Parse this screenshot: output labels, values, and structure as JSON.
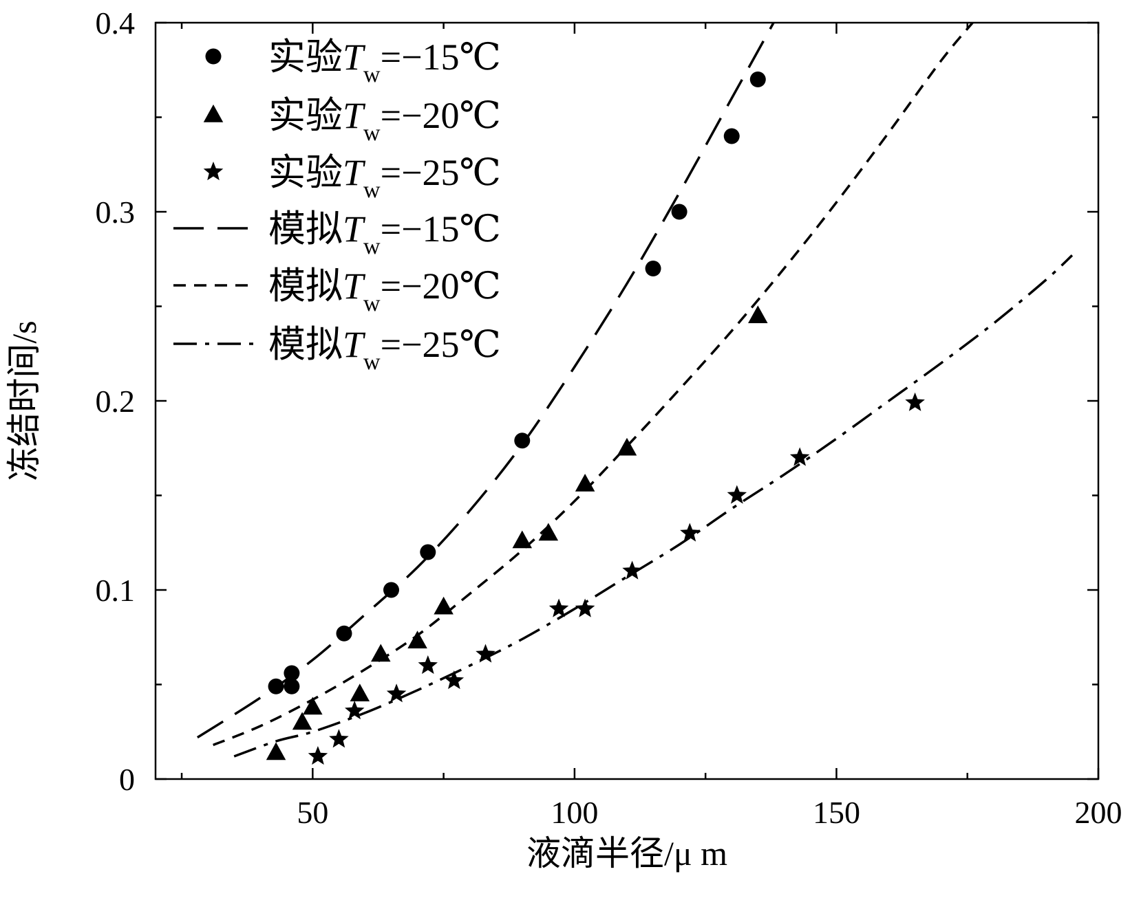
{
  "chart_data": {
    "type": "scatter",
    "title": "",
    "xlabel": "液滴半径/μ m",
    "ylabel": "冻结时间/s",
    "xlim": [
      20,
      200
    ],
    "ylim": [
      0,
      0.4
    ],
    "xticks": [
      50,
      100,
      150,
      200
    ],
    "xtick_labels": [
      "50",
      "100",
      "150",
      "200"
    ],
    "yticks": [
      0,
      0.1,
      0.2,
      0.3,
      0.4
    ],
    "ytick_labels": [
      "0",
      "0.1",
      "0.2",
      "0.3",
      "0.4"
    ],
    "x_minor_ticks": [
      25,
      75,
      125,
      175
    ],
    "y_minor_ticks": [
      0.05,
      0.15,
      0.25,
      0.35
    ],
    "grid": false,
    "legend_position": "top-left",
    "legend_prefix_exp": "实验",
    "legend_prefix_sim": "模拟",
    "legend_var": "T",
    "legend_sub": "w",
    "experiments": [
      {
        "name": "实验Tw=−15℃",
        "temp": "=−15℃",
        "marker": "circle",
        "x": [
          43,
          46,
          46,
          56,
          65,
          72,
          90,
          115,
          120,
          130,
          135
        ],
        "y": [
          0.049,
          0.049,
          0.056,
          0.077,
          0.1,
          0.12,
          0.179,
          0.27,
          0.3,
          0.34,
          0.37
        ]
      },
      {
        "name": "实验Tw=−20℃",
        "temp": "=−20℃",
        "marker": "triangle",
        "x": [
          43,
          48,
          50,
          59,
          63,
          70,
          75,
          90,
          95,
          102,
          110,
          135
        ],
        "y": [
          0.014,
          0.03,
          0.038,
          0.045,
          0.066,
          0.073,
          0.091,
          0.126,
          0.13,
          0.156,
          0.175,
          0.245
        ]
      },
      {
        "name": "实验Tw=−25℃",
        "temp": "=−25℃",
        "marker": "star",
        "x": [
          51,
          55,
          58,
          66,
          72,
          77,
          83,
          97,
          102,
          111,
          122,
          131,
          143,
          165
        ],
        "y": [
          0.012,
          0.021,
          0.036,
          0.045,
          0.06,
          0.052,
          0.066,
          0.09,
          0.09,
          0.11,
          0.13,
          0.15,
          0.17,
          0.199
        ]
      }
    ],
    "simulations": [
      {
        "name": "模拟Tw=−15℃",
        "temp": "=−15℃",
        "dash": "44 20",
        "x": [
          28,
          40,
          50,
          60,
          70,
          80,
          90,
          100,
          110,
          120,
          130,
          138
        ],
        "y": [
          0.022,
          0.043,
          0.063,
          0.087,
          0.112,
          0.142,
          0.177,
          0.218,
          0.262,
          0.31,
          0.36,
          0.4
        ]
      },
      {
        "name": "模拟Tw=−20℃",
        "temp": "=−20℃",
        "dash": "18 12",
        "x": [
          31,
          40,
          50,
          60,
          70,
          80,
          90,
          100,
          110,
          120,
          130,
          140,
          150,
          160,
          170,
          176
        ],
        "y": [
          0.018,
          0.028,
          0.042,
          0.058,
          0.076,
          0.098,
          0.121,
          0.147,
          0.176,
          0.206,
          0.237,
          0.27,
          0.305,
          0.342,
          0.38,
          0.4
        ]
      },
      {
        "name": "模拟Tw=−25℃",
        "temp": "=−25℃",
        "dash": "34 12 6 12",
        "x": [
          35,
          43,
          50,
          60,
          70,
          80,
          90,
          100,
          110,
          120,
          130,
          140,
          150,
          160,
          170,
          180,
          190,
          195
        ],
        "y": [
          0.012,
          0.02,
          0.025,
          0.035,
          0.047,
          0.06,
          0.074,
          0.09,
          0.107,
          0.124,
          0.143,
          0.161,
          0.18,
          0.2,
          0.22,
          0.241,
          0.264,
          0.277
        ]
      }
    ]
  }
}
